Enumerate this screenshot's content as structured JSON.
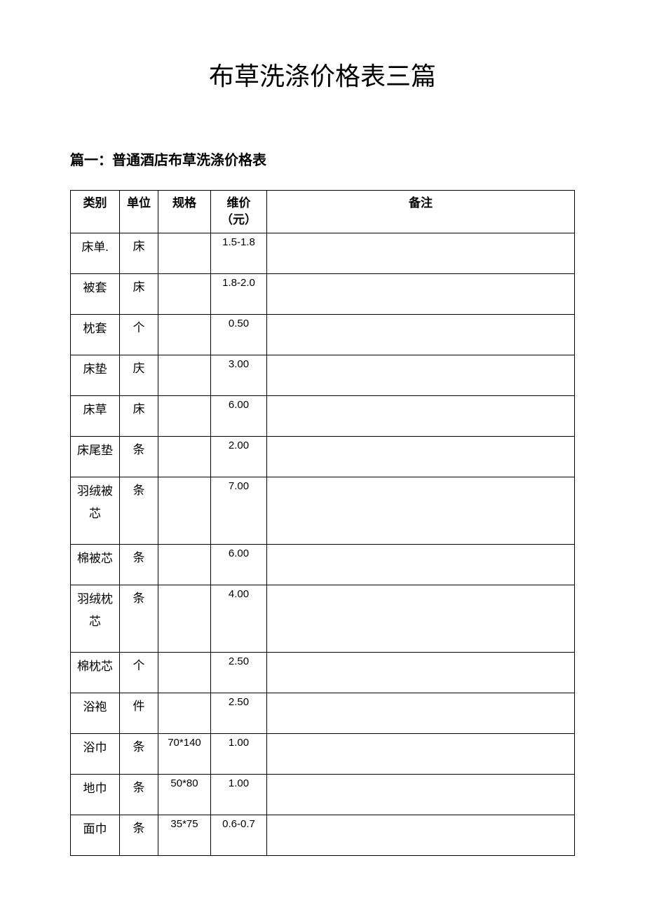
{
  "page_title": "布草洗涤价格表三篇",
  "section_title": "篇一：普通酒店布草洗涤价格表",
  "table": {
    "headers": {
      "category": "类别",
      "unit": "单位",
      "spec": "规格",
      "price_line1": "维价",
      "price_line2": "（元）",
      "note": "备注"
    },
    "rows": [
      {
        "category": "床单.",
        "unit": "床",
        "spec": "",
        "price": "1.5-1.8",
        "note": "",
        "tall": false
      },
      {
        "category": "被套",
        "unit": "床",
        "spec": "",
        "price": "1.8-2.0",
        "note": "",
        "tall": false
      },
      {
        "category": "枕套",
        "unit": "个",
        "spec": "",
        "price": "0.50",
        "note": "",
        "tall": false
      },
      {
        "category": "床垫",
        "unit": "庆",
        "spec": "",
        "price": "3.00",
        "note": "",
        "tall": false
      },
      {
        "category": "床草",
        "unit": "床",
        "spec": "",
        "price": "6.00",
        "note": "",
        "tall": false
      },
      {
        "category": "床尾垫",
        "unit": "条",
        "spec": "",
        "price": "2.00",
        "note": "",
        "tall": false
      },
      {
        "category": "羽绒被芯",
        "unit": "条",
        "spec": "",
        "price": "7.00",
        "note": "",
        "tall": true
      },
      {
        "category": "棉被芯",
        "unit": "条",
        "spec": "",
        "price": "6.00",
        "note": "",
        "tall": false
      },
      {
        "category": "羽绒枕芯",
        "unit": "条",
        "spec": "",
        "price": "4.00",
        "note": "",
        "tall": true
      },
      {
        "category": "棉枕芯",
        "unit": "个",
        "spec": "",
        "price": "2.50",
        "note": "",
        "tall": false
      },
      {
        "category": "浴袍",
        "unit": "件",
        "spec": "",
        "price": "2.50",
        "note": "",
        "tall": false
      },
      {
        "category": "浴巾",
        "unit": "条",
        "spec": "70*140",
        "price": "1.00",
        "note": "",
        "tall": false
      },
      {
        "category": "地巾",
        "unit": "条",
        "spec": "50*80",
        "price": "1.00",
        "note": "",
        "tall": false
      },
      {
        "category": "面巾",
        "unit": "条",
        "spec": "35*75",
        "price": "0.6-0.7",
        "note": "",
        "tall": false
      }
    ]
  },
  "styling": {
    "background_color": "#ffffff",
    "text_color": "#000000",
    "border_color": "#000000",
    "title_fontsize": 36,
    "section_fontsize": 20,
    "cell_fontsize": 16,
    "font_family": "SimSun"
  }
}
